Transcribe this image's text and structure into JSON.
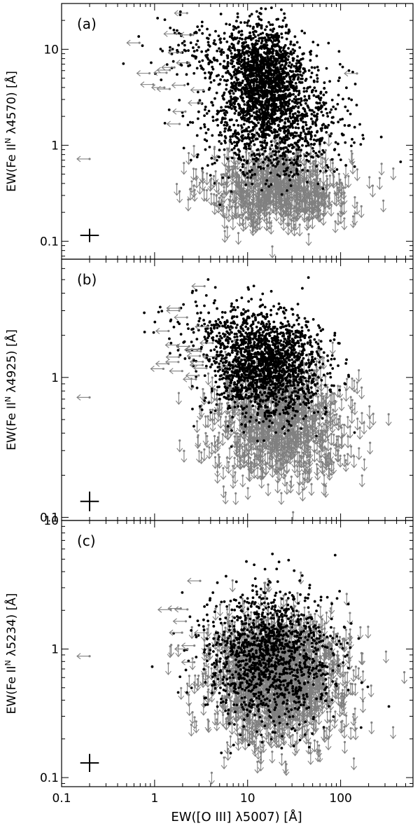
{
  "chart_data": {
    "type": "scatter",
    "description_note": "",
    "shared_x_axis": {
      "label": "EW([O III] λ5007)   [Å]",
      "scale": "log",
      "range": [
        0.1,
        600
      ],
      "ticks": [
        0.1,
        1,
        10,
        100
      ],
      "tick_labels": [
        "0.1",
        "1",
        "10",
        "100"
      ]
    },
    "series_styles": {
      "detections": {
        "color": "#000000",
        "marker": "dot"
      },
      "upper_limits": {
        "color": "#808080",
        "marker": "down-arrow"
      },
      "x_upper_limits": {
        "color": "#808080",
        "marker": "left-arrow"
      }
    },
    "panels": [
      {
        "panel_label": "(a)",
        "ylabel": "EW(Fe II",
        "ylabel_sup": "N",
        "ylabel_rest": " λ4570)   [Å]",
        "y_scale": "log",
        "ylim": [
          0.065,
          30
        ],
        "y_ticks": [
          0.1,
          1,
          10
        ],
        "y_tick_labels": [
          "0.1",
          "1",
          "10"
        ],
        "detection_cloud": [
          {
            "x": 15,
            "y": 5.0,
            "sx": 0.22,
            "sy": 0.26,
            "n": 1400
          },
          {
            "x": 20,
            "y": 1.6,
            "sx": 0.36,
            "sy": 0.28,
            "n": 1000
          },
          {
            "x": 6,
            "y": 10,
            "sx": 0.38,
            "sy": 0.16,
            "n": 250
          }
        ],
        "limit_cloud": [
          {
            "x": 22,
            "y": 0.4,
            "sx": 0.38,
            "sy": 0.2,
            "n": 750
          }
        ],
        "left_limit_cloud": [
          {
            "x": 2.2,
            "y": 6,
            "sx": 0.18,
            "sy": 0.35,
            "n": 18
          }
        ],
        "explicit_left_limits": [
          {
            "x": 0.2,
            "y": 0.72
          },
          {
            "x": 150,
            "y": 5.6
          }
        ],
        "typical_error": {
          "x": 0.2,
          "y": 0.115,
          "dx_dex": 0.1,
          "dy_dex": 0.07
        }
      },
      {
        "panel_label": "(b)",
        "ylabel": "EW(Fe II",
        "ylabel_sup": "N",
        "ylabel_rest": " λ4925)   [Å]",
        "y_scale": "log",
        "ylim": [
          0.095,
          7
        ],
        "y_ticks": [
          0.1,
          1
        ],
        "y_tick_labels": [
          "0.1",
          "1"
        ],
        "detection_cloud": [
          {
            "x": 16,
            "y": 1.2,
            "sx": 0.3,
            "sy": 0.18,
            "n": 1700
          },
          {
            "x": 6,
            "y": 2.2,
            "sx": 0.35,
            "sy": 0.12,
            "n": 200
          }
        ],
        "limit_cloud": [
          {
            "x": 22,
            "y": 0.52,
            "sx": 0.38,
            "sy": 0.2,
            "n": 950
          }
        ],
        "left_limit_cloud": [
          {
            "x": 2.5,
            "y": 1.6,
            "sx": 0.2,
            "sy": 0.2,
            "n": 24
          }
        ],
        "explicit_left_limits": [
          {
            "x": 0.2,
            "y": 0.72
          }
        ],
        "typical_error": {
          "x": 0.2,
          "y": 0.13,
          "dx_dex": 0.1,
          "dy_dex": 0.07
        }
      },
      {
        "panel_label": "(c)",
        "ylabel": "EW(Fe II",
        "ylabel_sup": "N",
        "ylabel_rest": " λ5234)   [Å]",
        "y_scale": "log",
        "ylim": [
          0.085,
          10
        ],
        "y_ticks": [
          0.1,
          1,
          10
        ],
        "y_tick_labels": [
          "0.1",
          "1",
          "10"
        ],
        "detection_cloud": [
          {
            "x": 16,
            "y": 0.9,
            "sx": 0.35,
            "sy": 0.26,
            "n": 1300
          }
        ],
        "limit_cloud": [
          {
            "x": 20,
            "y": 0.65,
            "sx": 0.38,
            "sy": 0.24,
            "n": 1500
          }
        ],
        "left_limit_cloud": [
          {
            "x": 2.5,
            "y": 1.4,
            "sx": 0.18,
            "sy": 0.2,
            "n": 10
          }
        ],
        "explicit_left_limits": [
          {
            "x": 0.2,
            "y": 0.88
          }
        ],
        "typical_error": {
          "x": 0.2,
          "y": 0.13,
          "dx_dex": 0.1,
          "dy_dex": 0.07
        }
      }
    ]
  }
}
